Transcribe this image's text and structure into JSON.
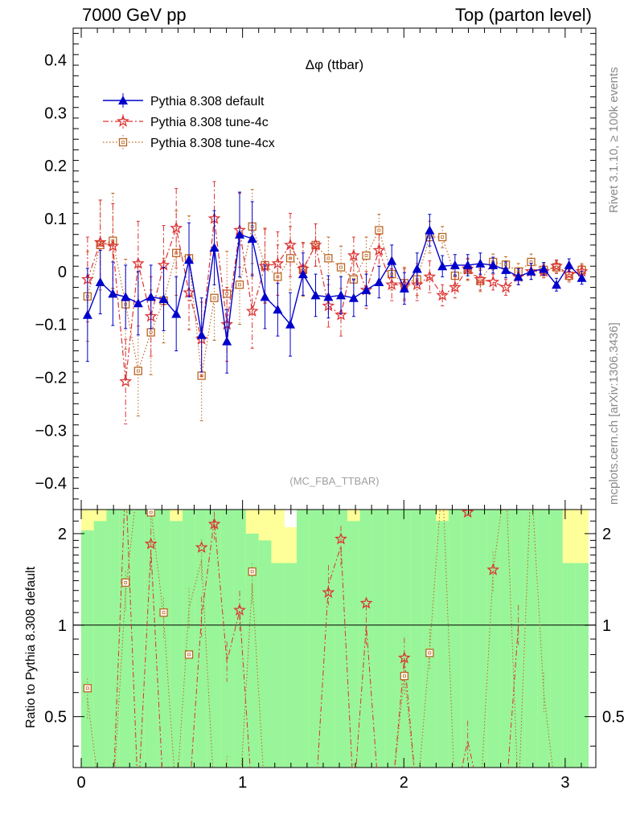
{
  "header": {
    "left": "7000 GeV pp",
    "right": "Top (parton level)"
  },
  "side_labels": {
    "top": "Rivet 3.1.10, ≥ 100k events",
    "bottom": "mcplots.cern.ch [arXiv:1306.3436]"
  },
  "ratio_axis_label": "Ratio to Pythia 8.308 default",
  "colors": {
    "default": "#0000cc",
    "tune4c": "#dd3333",
    "tune4cx": "#bb6622",
    "band_green": "#99f599",
    "band_yellow": "#ffff99"
  },
  "chart_data": [
    {
      "type": "line",
      "title": "Δφ (ttbar)",
      "watermark": "(MC_FBA_TTBAR)",
      "xlim": [
        -0.05,
        3.19
      ],
      "ylim": [
        -0.45,
        0.46
      ],
      "yticks": [
        {
          "v": 0.4,
          "label": "0.4"
        },
        {
          "v": 0.3,
          "label": "0.3"
        },
        {
          "v": 0.2,
          "label": "0.2"
        },
        {
          "v": 0.1,
          "label": "0.1"
        },
        {
          "v": 0,
          "label": "0"
        },
        {
          "v": -0.1,
          "label": "−0.1"
        },
        {
          "v": -0.2,
          "label": "−0.2"
        },
        {
          "v": -0.3,
          "label": "−0.3"
        },
        {
          "v": -0.4,
          "label": "−0.4"
        }
      ],
      "x": [
        0.039,
        0.118,
        0.196,
        0.275,
        0.353,
        0.432,
        0.511,
        0.589,
        0.668,
        0.746,
        0.825,
        0.903,
        0.982,
        1.06,
        1.139,
        1.218,
        1.296,
        1.375,
        1.453,
        1.532,
        1.61,
        1.689,
        1.767,
        1.846,
        1.925,
        2.003,
        2.082,
        2.16,
        2.239,
        2.317,
        2.396,
        2.474,
        2.553,
        2.632,
        2.71,
        2.789,
        2.867,
        2.946,
        3.024,
        3.103
      ],
      "series": [
        {
          "name": "Pythia 8.308 default",
          "marker": "triangle",
          "values": [
            -0.082,
            -0.02,
            -0.042,
            -0.048,
            -0.06,
            -0.048,
            -0.052,
            -0.08,
            0.022,
            -0.12,
            0.045,
            -0.132,
            0.07,
            0.062,
            -0.048,
            -0.072,
            -0.1,
            -0.005,
            -0.045,
            -0.048,
            -0.045,
            -0.05,
            -0.035,
            -0.02,
            0.02,
            -0.032,
            0.005,
            0.078,
            0.01,
            0.012,
            0.012,
            0.015,
            0.012,
            0.003,
            -0.01,
            0.0,
            0.005,
            -0.025,
            0.012,
            -0.012
          ],
          "errors": [
            0.088,
            0.06,
            0.06,
            0.06,
            0.06,
            0.06,
            0.06,
            0.07,
            0.07,
            0.07,
            0.07,
            0.06,
            0.08,
            0.07,
            0.06,
            0.05,
            0.06,
            0.04,
            0.04,
            0.04,
            0.035,
            0.035,
            0.03,
            0.03,
            0.03,
            0.03,
            0.03,
            0.03,
            0.02,
            0.02,
            0.02,
            0.02,
            0.015,
            0.015,
            0.015,
            0.015,
            0.012,
            0.012,
            0.012,
            0.012
          ]
        },
        {
          "name": "Pythia 8.308 tune-4c",
          "marker": "star",
          "values": [
            -0.015,
            0.055,
            0.048,
            -0.208,
            0.015,
            -0.085,
            0.012,
            0.082,
            -0.04,
            -0.128,
            0.1,
            -0.1,
            0.078,
            -0.075,
            0.01,
            0.015,
            0.05,
            0.005,
            0.05,
            -0.065,
            -0.082,
            0.03,
            -0.035,
            0.04,
            -0.025,
            -0.025,
            -0.025,
            -0.01,
            -0.045,
            -0.03,
            0.005,
            -0.015,
            -0.02,
            -0.03,
            -0.01,
            0.0,
            0.0,
            0.01,
            -0.005,
            0.0
          ],
          "errors": [
            0.08,
            0.08,
            0.08,
            0.08,
            0.08,
            0.075,
            0.075,
            0.075,
            0.07,
            0.07,
            0.07,
            0.07,
            0.07,
            0.07,
            0.07,
            0.06,
            0.06,
            0.05,
            0.04,
            0.04,
            0.04,
            0.035,
            0.035,
            0.03,
            0.03,
            0.03,
            0.03,
            0.03,
            0.02,
            0.02,
            0.02,
            0.02,
            0.015,
            0.015,
            0.015,
            0.015,
            0.012,
            0.012,
            0.012,
            0.012
          ]
        },
        {
          "name": "Pythia 8.308 tune-4cx",
          "marker": "open-square",
          "values": [
            -0.047,
            0.05,
            0.058,
            -0.062,
            -0.188,
            -0.115,
            -0.055,
            0.035,
            0.025,
            -0.197,
            -0.05,
            -0.042,
            -0.025,
            0.085,
            0.012,
            -0.01,
            0.025,
            0.003,
            0.05,
            0.025,
            0.008,
            -0.015,
            0.03,
            0.078,
            -0.005,
            -0.022,
            -0.015,
            0.065,
            0.065,
            -0.008,
            0.003,
            -0.018,
            0.018,
            0.013,
            0.0,
            0.018,
            0.003,
            0.008,
            -0.008,
            0.003
          ],
          "errors": [
            0.085,
            0.085,
            0.09,
            0.085,
            0.085,
            0.08,
            0.08,
            0.08,
            0.08,
            0.085,
            0.08,
            0.08,
            0.075,
            0.07,
            0.07,
            0.06,
            0.06,
            0.05,
            0.04,
            0.04,
            0.04,
            0.035,
            0.035,
            0.03,
            0.03,
            0.03,
            0.03,
            0.03,
            0.02,
            0.02,
            0.02,
            0.02,
            0.015,
            0.015,
            0.015,
            0.015,
            0.012,
            0.012,
            0.012,
            0.012
          ]
        }
      ]
    },
    {
      "type": "line",
      "ylabel": "Ratio to Pythia 8.308 default",
      "xlim": [
        -0.05,
        3.19
      ],
      "ylim": [
        0.34,
        2.4
      ],
      "yscale": "log",
      "yticks": [
        {
          "v": 2,
          "label": "2"
        },
        {
          "v": 1,
          "label": "1"
        },
        {
          "v": 0.5,
          "label": "0.5"
        }
      ],
      "xticks": [
        {
          "v": 0,
          "label": "0"
        },
        {
          "v": 1,
          "label": "1"
        },
        {
          "v": 2,
          "label": "2"
        },
        {
          "v": 3,
          "label": "3"
        }
      ],
      "reference_line": 1,
      "band_green_lower": 0.34,
      "band_green_upper": [
        2.05,
        2.2,
        2.4,
        2.4,
        2.4,
        2.4,
        2.4,
        2.2,
        2.4,
        2.4,
        2.4,
        2.4,
        2.4,
        2.0,
        1.9,
        1.6,
        1.6,
        2.4,
        2.4,
        2.4,
        2.4,
        2.2,
        2.4,
        2.4,
        2.4,
        2.4,
        2.4,
        2.4,
        2.2,
        2.4,
        2.4,
        2.4,
        2.4,
        2.4,
        2.4,
        2.4,
        2.4,
        2.4,
        1.6,
        1.6
      ],
      "band_yellow_upper": [
        2.4,
        2.4,
        2.4,
        2.4,
        2.4,
        2.4,
        2.4,
        2.4,
        2.4,
        2.4,
        2.4,
        2.4,
        2.4,
        2.4,
        2.4,
        2.4,
        2.1,
        2.4,
        2.4,
        2.4,
        2.4,
        2.4,
        2.4,
        2.4,
        2.4,
        2.4,
        2.4,
        2.4,
        2.4,
        2.4,
        2.4,
        2.4,
        2.4,
        2.4,
        2.4,
        2.4,
        2.4,
        2.4,
        2.4,
        2.4
      ],
      "markers": [
        {
          "series": "Pythia 8.308 tune-4c",
          "x": [
            0.432,
            0.746,
            0.825,
            0.982,
            1.532,
            1.61,
            1.767,
            2.003,
            2.396,
            2.553
          ],
          "values": [
            1.85,
            1.8,
            2.15,
            1.12,
            1.28,
            1.92,
            1.18,
            0.78,
            2.35,
            1.52
          ]
        },
        {
          "series": "Pythia 8.308 tune-4cx",
          "x": [
            0.039,
            0.275,
            0.432,
            0.511,
            0.668,
            1.06,
            2.003,
            2.16
          ],
          "values": [
            0.62,
            1.38,
            2.35,
            1.1,
            0.8,
            1.5,
            0.68,
            0.81
          ]
        }
      ]
    }
  ]
}
